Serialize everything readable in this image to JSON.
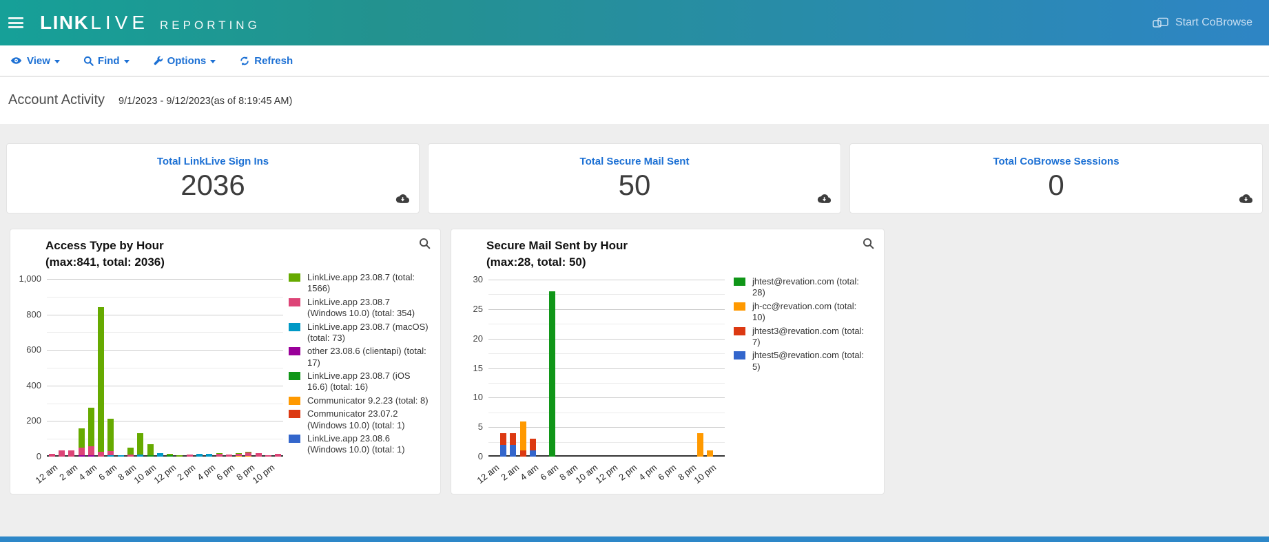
{
  "header": {
    "logo_bold": "LINK",
    "logo_light": "LIVE",
    "logo_suffix": "REPORTING",
    "start_cobrowse_label": "Start CoBrowse"
  },
  "toolbar": {
    "view_label": "View",
    "find_label": "Find",
    "options_label": "Options",
    "refresh_label": "Refresh"
  },
  "page": {
    "title": "Account Activity",
    "date_range": "9/1/2023 - 9/12/2023(as of 8:19:45 AM)"
  },
  "stat_cards": [
    {
      "title": "Total LinkLive Sign Ins",
      "value": "2036"
    },
    {
      "title": "Total Secure Mail Sent",
      "value": "50"
    },
    {
      "title": "Total CoBrowse Sessions",
      "value": "0"
    }
  ],
  "icons": {
    "hamburger": "menu-icon",
    "cobrowse": "screens-icon",
    "view": "eye-icon",
    "find": "magnifier-icon",
    "options": "wrench-icon",
    "refresh": "refresh-icon",
    "card_download": "cloud-download-icon",
    "panel_zoom": "magnifier-icon"
  },
  "colors": {
    "header_teal": "#16a098",
    "header_blue": "#2e85c5",
    "link_blue": "#1c70d4",
    "page_bg": "#eeeeee",
    "bottom_bar": "#2d87c8"
  },
  "chart_data": [
    {
      "type": "bar",
      "stacked": true,
      "title": "Access Type by Hour",
      "subtitle": "(max:841, total: 2036)",
      "x_hours": 24,
      "x_tick_labels": [
        "12 am",
        "2 am",
        "4 am",
        "6 am",
        "8 am",
        "10 am",
        "12 pm",
        "2 pm",
        "4 pm",
        "6 pm",
        "8 pm",
        "10 pm"
      ],
      "ylim": [
        0,
        1000
      ],
      "grid_step": 100,
      "label_step": 200,
      "legend_position": "right",
      "series": [
        {
          "name": "LinkLive.app 23.08.7 (total: 1566)",
          "color": "#66AA00",
          "total": 1566,
          "values": [
            0,
            0,
            0,
            106,
            217,
            812,
            182,
            0,
            42,
            117,
            63,
            0,
            8,
            6,
            0,
            0,
            0,
            5,
            0,
            4,
            4,
            0,
            0,
            0
          ]
        },
        {
          "name": "LinkLive.app 23.08.7 (Windows 10.0) (total: 354)",
          "color": "#DD4477",
          "total": 354,
          "values": [
            17,
            35,
            34,
            44,
            49,
            29,
            26,
            0,
            10,
            0,
            0,
            0,
            0,
            0,
            10,
            0,
            0,
            14,
            13,
            13,
            18,
            21,
            6,
            15
          ]
        },
        {
          "name": "LinkLive.app 23.08.7 (macOS) (total: 73)",
          "color": "#0099C6",
          "total": 73,
          "values": [
            0,
            0,
            0,
            0,
            0,
            0,
            6,
            8,
            0,
            13,
            0,
            19,
            0,
            0,
            0,
            13,
            14,
            0,
            0,
            0,
            0,
            0,
            0,
            0
          ]
        },
        {
          "name": "other 23.08.6 (clientapi) (total: 17)",
          "color": "#990099",
          "total": 17,
          "values": [
            0,
            0,
            0,
            8,
            9,
            0,
            0,
            0,
            0,
            0,
            0,
            0,
            0,
            0,
            0,
            0,
            0,
            0,
            0,
            0,
            0,
            0,
            0,
            0
          ]
        },
        {
          "name": "LinkLive.app 23.08.7 (iOS 16.6) (total: 16)",
          "color": "#109618",
          "total": 16,
          "values": [
            0,
            0,
            0,
            0,
            0,
            0,
            0,
            0,
            0,
            0,
            8,
            0,
            8,
            0,
            0,
            0,
            0,
            0,
            0,
            0,
            0,
            0,
            0,
            0
          ]
        },
        {
          "name": "Communicator 9.2.23 (total: 8)",
          "color": "#FF9900",
          "total": 8,
          "values": [
            0,
            0,
            0,
            0,
            0,
            0,
            0,
            0,
            0,
            0,
            0,
            0,
            0,
            0,
            0,
            0,
            0,
            0,
            0,
            4,
            4,
            0,
            0,
            0
          ]
        },
        {
          "name": "Communicator 23.07.2 (Windows 10.0) (total: 1)",
          "color": "#DC3912",
          "total": 1,
          "values": [
            0,
            0,
            0,
            0,
            0,
            0,
            0,
            0,
            0,
            0,
            0,
            0,
            0,
            0,
            0,
            0,
            1,
            0,
            0,
            0,
            0,
            0,
            0,
            0
          ]
        },
        {
          "name": "LinkLive.app 23.08.6 (Windows 10.0) (total: 1)",
          "color": "#3366CC",
          "total": 1,
          "values": [
            0,
            0,
            0,
            0,
            0,
            0,
            0,
            0,
            0,
            0,
            0,
            0,
            0,
            0,
            0,
            1,
            0,
            0,
            0,
            0,
            0,
            0,
            0,
            0
          ]
        }
      ]
    },
    {
      "type": "bar",
      "stacked": true,
      "title": "Secure Mail Sent by Hour",
      "subtitle": "(max:28, total: 50)",
      "x_hours": 24,
      "x_tick_labels": [
        "12 am",
        "2 am",
        "4 am",
        "6 am",
        "8 am",
        "10 am",
        "12 pm",
        "2 pm",
        "4 pm",
        "6 pm",
        "8 pm",
        "10 pm"
      ],
      "ylim": [
        0,
        30
      ],
      "grid_step": 2.5,
      "label_step": 5,
      "legend_position": "right",
      "series": [
        {
          "name": "jhtest@revation.com (total: 28)",
          "color": "#109618",
          "total": 28,
          "values": [
            0,
            0,
            0,
            0,
            0,
            0,
            28,
            0,
            0,
            0,
            0,
            0,
            0,
            0,
            0,
            0,
            0,
            0,
            0,
            0,
            0,
            0,
            0,
            0
          ]
        },
        {
          "name": "jh-cc@revation.com (total: 10)",
          "color": "#FF9900",
          "total": 10,
          "values": [
            0,
            0,
            0,
            5,
            0,
            0,
            0,
            0,
            0,
            0,
            0,
            0,
            0,
            0,
            0,
            0,
            0,
            0,
            0,
            0,
            0,
            4,
            1,
            0
          ]
        },
        {
          "name": "jhtest3@revation.com (total: 7)",
          "color": "#DC3912",
          "total": 7,
          "values": [
            0,
            2,
            2,
            1,
            2,
            0,
            0,
            0,
            0,
            0,
            0,
            0,
            0,
            0,
            0,
            0,
            0,
            0,
            0,
            0,
            0,
            0,
            0,
            0
          ]
        },
        {
          "name": "jhtest5@revation.com (total: 5)",
          "color": "#3366CC",
          "total": 5,
          "values": [
            0,
            2,
            2,
            0,
            1,
            0,
            0,
            0,
            0,
            0,
            0,
            0,
            0,
            0,
            0,
            0,
            0,
            0,
            0,
            0,
            0,
            0,
            0,
            0
          ]
        }
      ]
    }
  ]
}
